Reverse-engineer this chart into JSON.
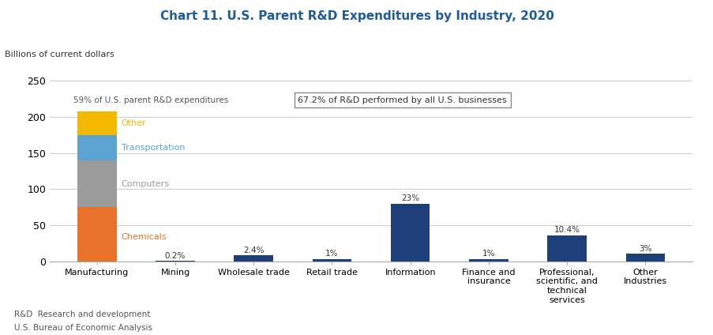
{
  "title": "Chart 11. U.S. Parent R&D Expenditures by Industry, 2020",
  "ylabel": "Billions of current dollars",
  "ylim": [
    0,
    260
  ],
  "yticks": [
    0,
    50,
    100,
    150,
    200,
    250
  ],
  "categories": [
    "Manufacturing",
    "Mining",
    "Wholesale trade",
    "Retail trade",
    "Information",
    "Finance and\ninsurance",
    "Professional,\nscientific, and\ntechnical\nservices",
    "Other\nIndustries"
  ],
  "mfg_segments": {
    "Chemicals": 75,
    "Computers": 65,
    "Transportation": 35,
    "Other": 33
  },
  "mfg_colors": [
    "#E8722A",
    "#9B9B9B",
    "#5BA4CF",
    "#F5B800"
  ],
  "mfg_label_colors": [
    "#E8722A",
    "#9B9B9B",
    "#5BA4CF",
    "#F5B800"
  ],
  "other_bars": [
    0.7,
    8.3,
    3.5,
    79.9,
    3.5,
    36.1,
    10.4
  ],
  "other_color": "#1F3F7A",
  "bar_labels": [
    "0.2%",
    "2.4%",
    "1%",
    "23%",
    "1%",
    "10.4%",
    "3%"
  ],
  "annotation_59": "59% of U.S. parent R&D expenditures",
  "annotation_672_text": "67.2% of R&D performed by all U.S. businesses",
  "footnote1": "R&D  Research and development",
  "footnote2": "U.S. Bureau of Economic Analysis",
  "title_color": "#1F5C9E",
  "bar_width": 0.5,
  "background_color": "#FFFFFF"
}
